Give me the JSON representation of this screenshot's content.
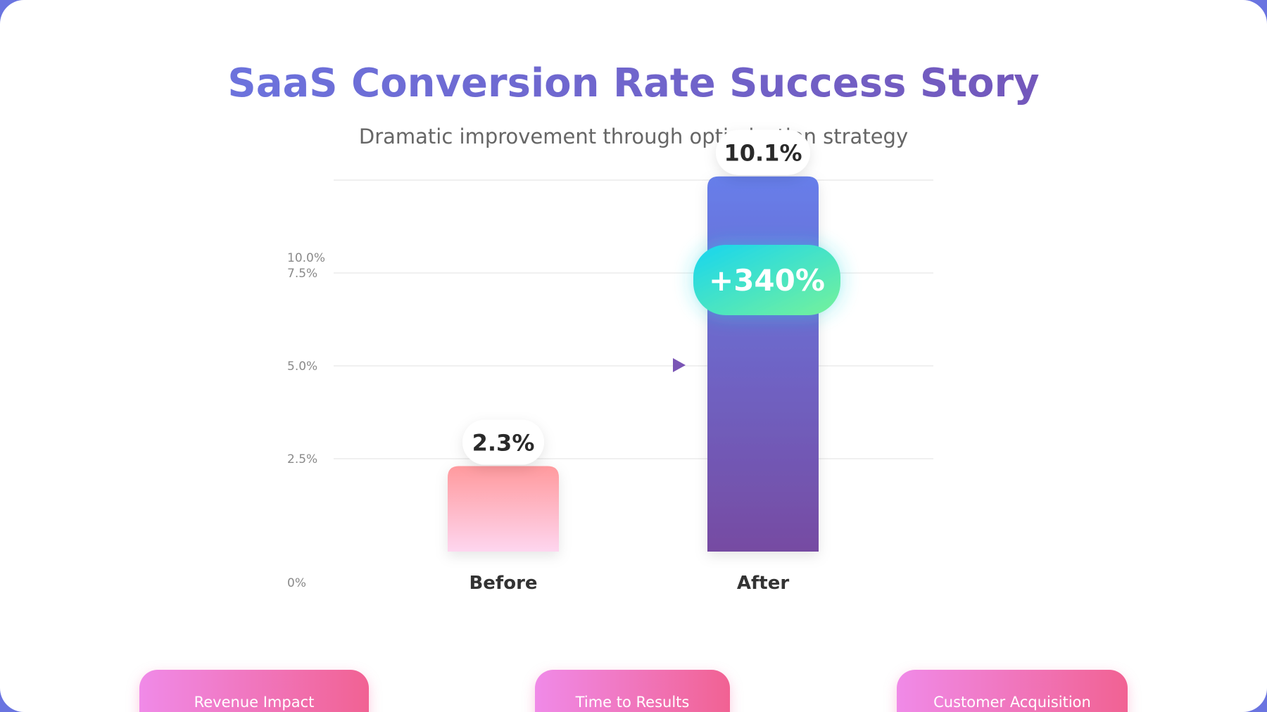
{
  "header": {
    "title": "SaaS Conversion Rate Success Story",
    "subtitle": "Dramatic improvement through optimization strategy"
  },
  "chart_data": {
    "type": "bar",
    "categories": [
      "Before",
      "After"
    ],
    "values": [
      2.3,
      10.1
    ],
    "value_labels": [
      "2.3%",
      "10.1%"
    ],
    "y_ticks": [
      {
        "value": 0,
        "label": "0%"
      },
      {
        "value": 2.5,
        "label": "2.5%"
      },
      {
        "value": 5.0,
        "label": "5.0%"
      },
      {
        "value": 7.5,
        "label": "7.5%"
      },
      {
        "value": 10.0,
        "label": "10.0%"
      }
    ],
    "ylim": [
      0,
      10.0
    ],
    "grid": true,
    "annotation": "+340%",
    "colors": {
      "before_top": "#ff9a9e",
      "before_bottom": "#fed6ef",
      "after_top": "#667eea",
      "after_bottom": "#764ba2",
      "badge_left": "#17d5f0",
      "badge_right": "#76f29a",
      "arrow": "#7a55b5"
    }
  },
  "metric_cards": [
    {
      "label": "Revenue Impact"
    },
    {
      "label": "Time to Results"
    },
    {
      "label": "Customer Acquisition"
    }
  ]
}
